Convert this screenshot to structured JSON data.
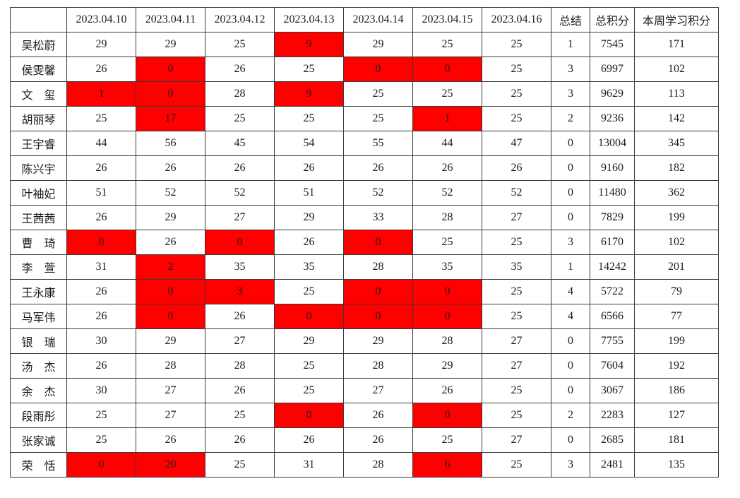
{
  "colors": {
    "red_fill": "#fe0000",
    "red_cell_text": "#ffb300",
    "accent_red": "#e0392e",
    "border_color": "#3a3a3a"
  },
  "chart_data": {
    "type": "table",
    "title": "",
    "columns": [
      "",
      "2023.04.10",
      "2023.04.11",
      "2023.04.12",
      "2023.04.13",
      "2023.04.14",
      "2023.04.15",
      "2023.04.16",
      "总结",
      "总积分",
      "本周学习积分"
    ],
    "legend_note": "red-filled cells mark flagged (low/zero) daily scores; 总结 column counts them",
    "rows": [
      {
        "name": "吴松蔚",
        "day_scores": [
          29,
          29,
          25,
          9,
          29,
          25,
          25
        ],
        "red_days": [
          3
        ],
        "summary": 1,
        "total_points": 7545,
        "week_points": 171
      },
      {
        "name": "侯雯馨",
        "day_scores": [
          26,
          0,
          26,
          25,
          0,
          0,
          25
        ],
        "red_days": [
          1,
          4,
          5
        ],
        "summary": 3,
        "total_points": 6997,
        "week_points": 102
      },
      {
        "name": "文　玺",
        "day_scores": [
          1,
          0,
          28,
          9,
          25,
          25,
          25
        ],
        "red_days": [
          0,
          1,
          3
        ],
        "summary": 3,
        "total_points": 9629,
        "week_points": 113
      },
      {
        "name": "胡丽琴",
        "day_scores": [
          25,
          17,
          25,
          25,
          25,
          1,
          25
        ],
        "red_days": [
          1,
          5
        ],
        "summary": 2,
        "total_points": 9236,
        "week_points": 142
      },
      {
        "name": "王宇睿",
        "day_scores": [
          44,
          56,
          45,
          54,
          55,
          44,
          47
        ],
        "red_days": [],
        "summary": 0,
        "total_points": 13004,
        "week_points": 345
      },
      {
        "name": "陈兴宇",
        "day_scores": [
          26,
          26,
          26,
          26,
          26,
          26,
          26
        ],
        "red_days": [],
        "summary": 0,
        "total_points": 9160,
        "week_points": 182
      },
      {
        "name": "叶袖妃",
        "day_scores": [
          51,
          52,
          52,
          51,
          52,
          52,
          52
        ],
        "red_days": [],
        "summary": 0,
        "total_points": 11480,
        "week_points": 362
      },
      {
        "name": "王茜茜",
        "day_scores": [
          26,
          29,
          27,
          29,
          33,
          28,
          27
        ],
        "red_days": [],
        "summary": 0,
        "total_points": 7829,
        "week_points": 199
      },
      {
        "name": "曹　琦",
        "day_scores": [
          0,
          26,
          0,
          26,
          0,
          25,
          25
        ],
        "red_days": [
          0,
          2,
          4
        ],
        "summary": 3,
        "total_points": 6170,
        "week_points": 102
      },
      {
        "name": "李　萱",
        "day_scores": [
          31,
          2,
          35,
          35,
          28,
          35,
          35
        ],
        "red_days": [
          1
        ],
        "summary": 1,
        "total_points": 14242,
        "week_points": 201
      },
      {
        "name": "王永康",
        "day_scores": [
          26,
          0,
          3,
          25,
          0,
          0,
          25
        ],
        "red_days": [
          1,
          2,
          4,
          5
        ],
        "summary": 4,
        "total_points": 5722,
        "week_points": 79
      },
      {
        "name": "马军伟",
        "day_scores": [
          26,
          0,
          26,
          0,
          0,
          0,
          25
        ],
        "red_days": [
          1,
          3,
          4,
          5
        ],
        "summary": 4,
        "total_points": 6566,
        "week_points": 77
      },
      {
        "name": "银　瑞",
        "day_scores": [
          30,
          29,
          27,
          29,
          29,
          28,
          27
        ],
        "red_days": [],
        "summary": 0,
        "total_points": 7755,
        "week_points": 199
      },
      {
        "name": "汤　杰",
        "day_scores": [
          26,
          28,
          28,
          25,
          28,
          29,
          27
        ],
        "red_days": [],
        "summary": 0,
        "total_points": 7604,
        "week_points": 192
      },
      {
        "name": "余　杰",
        "day_scores": [
          30,
          27,
          26,
          25,
          27,
          26,
          25
        ],
        "red_days": [],
        "summary": 0,
        "total_points": 3067,
        "week_points": 186
      },
      {
        "name": "段雨彤",
        "day_scores": [
          25,
          27,
          25,
          0,
          26,
          0,
          25
        ],
        "red_days": [
          3,
          5
        ],
        "summary": 2,
        "total_points": 2283,
        "week_points": 127
      },
      {
        "name": "张家诚",
        "day_scores": [
          25,
          26,
          26,
          26,
          26,
          25,
          27
        ],
        "red_days": [],
        "summary": 0,
        "total_points": 2685,
        "week_points": 181
      },
      {
        "name": "荣　恬",
        "day_scores": [
          0,
          20,
          25,
          31,
          28,
          6,
          25
        ],
        "red_days": [
          0,
          1,
          5
        ],
        "summary": 3,
        "total_points": 2481,
        "week_points": 135
      }
    ]
  }
}
